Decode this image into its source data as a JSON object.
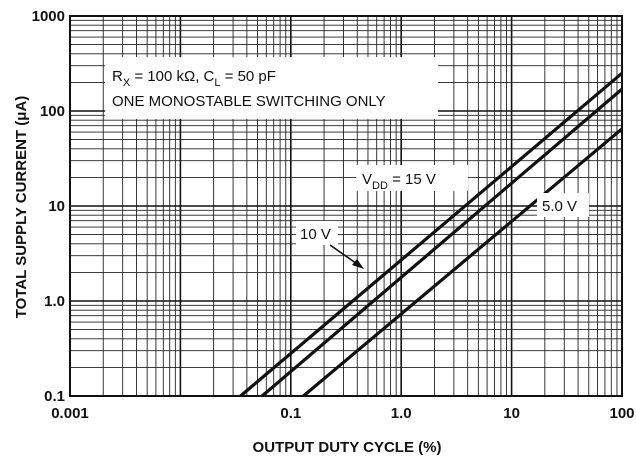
{
  "chart_data": {
    "type": "line",
    "xscale": "log",
    "yscale": "log",
    "xlim": [
      0.001,
      100
    ],
    "ylim": [
      0.1,
      1000
    ],
    "xlabel": "OUTPUT DUTY CYCLE (%)",
    "ylabel": "TOTAL SUPPLY CURRENT (μA)",
    "x_ticks": [
      "0.001",
      "0.1",
      "1.0",
      "10",
      "100"
    ],
    "x_tick_values": [
      0.001,
      0.1,
      1,
      10,
      100
    ],
    "y_ticks": [
      "0.1",
      "1.0",
      "10",
      "100",
      "1000"
    ],
    "y_tick_values": [
      0.1,
      1,
      10,
      100,
      1000
    ],
    "grid": true,
    "conditions": {
      "line1": "R",
      "line1_sub": "X",
      "line1_rest": " = 100 kΩ, C",
      "line1_sub2": "L",
      "line1_rest2": " = 50 pF",
      "line2": "ONE MONOSTABLE SWITCHING ONLY"
    },
    "series": [
      {
        "name": "VDD = 15 V",
        "label_main": "V",
        "label_sub": "DD",
        "label_rest": " = 15 V",
        "x": [
          0.035,
          100
        ],
        "y": [
          0.1,
          250
        ]
      },
      {
        "name": "10 V",
        "label_main": "10 V",
        "x": [
          0.055,
          100
        ],
        "y": [
          0.1,
          170
        ]
      },
      {
        "name": "5.0 V",
        "label_main": "5.0 V",
        "x": [
          0.13,
          100
        ],
        "y": [
          0.1,
          65
        ]
      }
    ]
  }
}
